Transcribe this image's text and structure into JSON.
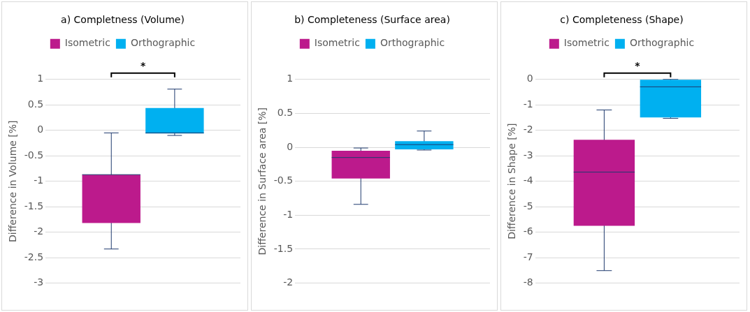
{
  "chart_data": [
    {
      "type": "box",
      "title": "a) Completness (Volume)",
      "ylabel": "Difference in Volume [%]",
      "categories": [
        null
      ],
      "ylim": [
        -3,
        1
      ],
      "yticks": [
        -3,
        -2.5,
        -2,
        -1.5,
        -1,
        -0.5,
        0,
        0.5,
        1
      ],
      "grid": "y",
      "legend": "top",
      "annotations": [
        "*"
      ],
      "series": [
        {
          "name": "Isometric",
          "color": "#bc1a8c",
          "boxes": [
            {
              "low": -2.33,
              "q1": -1.82,
              "median": -0.87,
              "q3": -0.87,
              "high": -0.05
            }
          ]
        },
        {
          "name": "Orthographic",
          "color": "#00b0f0",
          "boxes": [
            {
              "low": -0.1,
              "q1": -0.06,
              "median": -0.05,
              "q3": 0.44,
              "high": 0.81
            }
          ]
        }
      ]
    },
    {
      "type": "box",
      "title": "b) Completeness (Surface area)",
      "ylabel": "Difference in Surface area [%]",
      "categories": [
        null
      ],
      "ylim": [
        -2,
        1
      ],
      "yticks": [
        -2,
        -1.5,
        -1,
        -0.5,
        0,
        0.5,
        1
      ],
      "grid": "y",
      "legend": "top",
      "series": [
        {
          "name": "Isometric",
          "color": "#bc1a8c",
          "boxes": [
            {
              "low": -0.84,
              "q1": -0.46,
              "median": -0.15,
              "q3": -0.05,
              "high": -0.01
            }
          ]
        },
        {
          "name": "Orthographic",
          "color": "#00b0f0",
          "boxes": [
            {
              "low": -0.04,
              "q1": -0.03,
              "median": 0.04,
              "q3": 0.09,
              "high": 0.24
            }
          ]
        }
      ]
    },
    {
      "type": "box",
      "title": "c) Completeness (Shape)",
      "ylabel": "Difference in Shape [%]",
      "categories": [
        null
      ],
      "ylim": [
        -8,
        0
      ],
      "yticks": [
        -8,
        -7,
        -6,
        -5,
        -4,
        -3,
        -2,
        -1,
        0
      ],
      "grid": "y",
      "legend": "top",
      "annotations": [
        "*"
      ],
      "series": [
        {
          "name": "Isometric",
          "color": "#bc1a8c",
          "boxes": [
            {
              "low": -7.51,
              "q1": -5.75,
              "median": -3.64,
              "q3": -2.37,
              "high": -1.2
            }
          ]
        },
        {
          "name": "Orthographic",
          "color": "#00b0f0",
          "boxes": [
            {
              "low": -1.53,
              "q1": -1.49,
              "median": -0.29,
              "q3": 0,
              "high": 0
            }
          ]
        }
      ]
    }
  ]
}
